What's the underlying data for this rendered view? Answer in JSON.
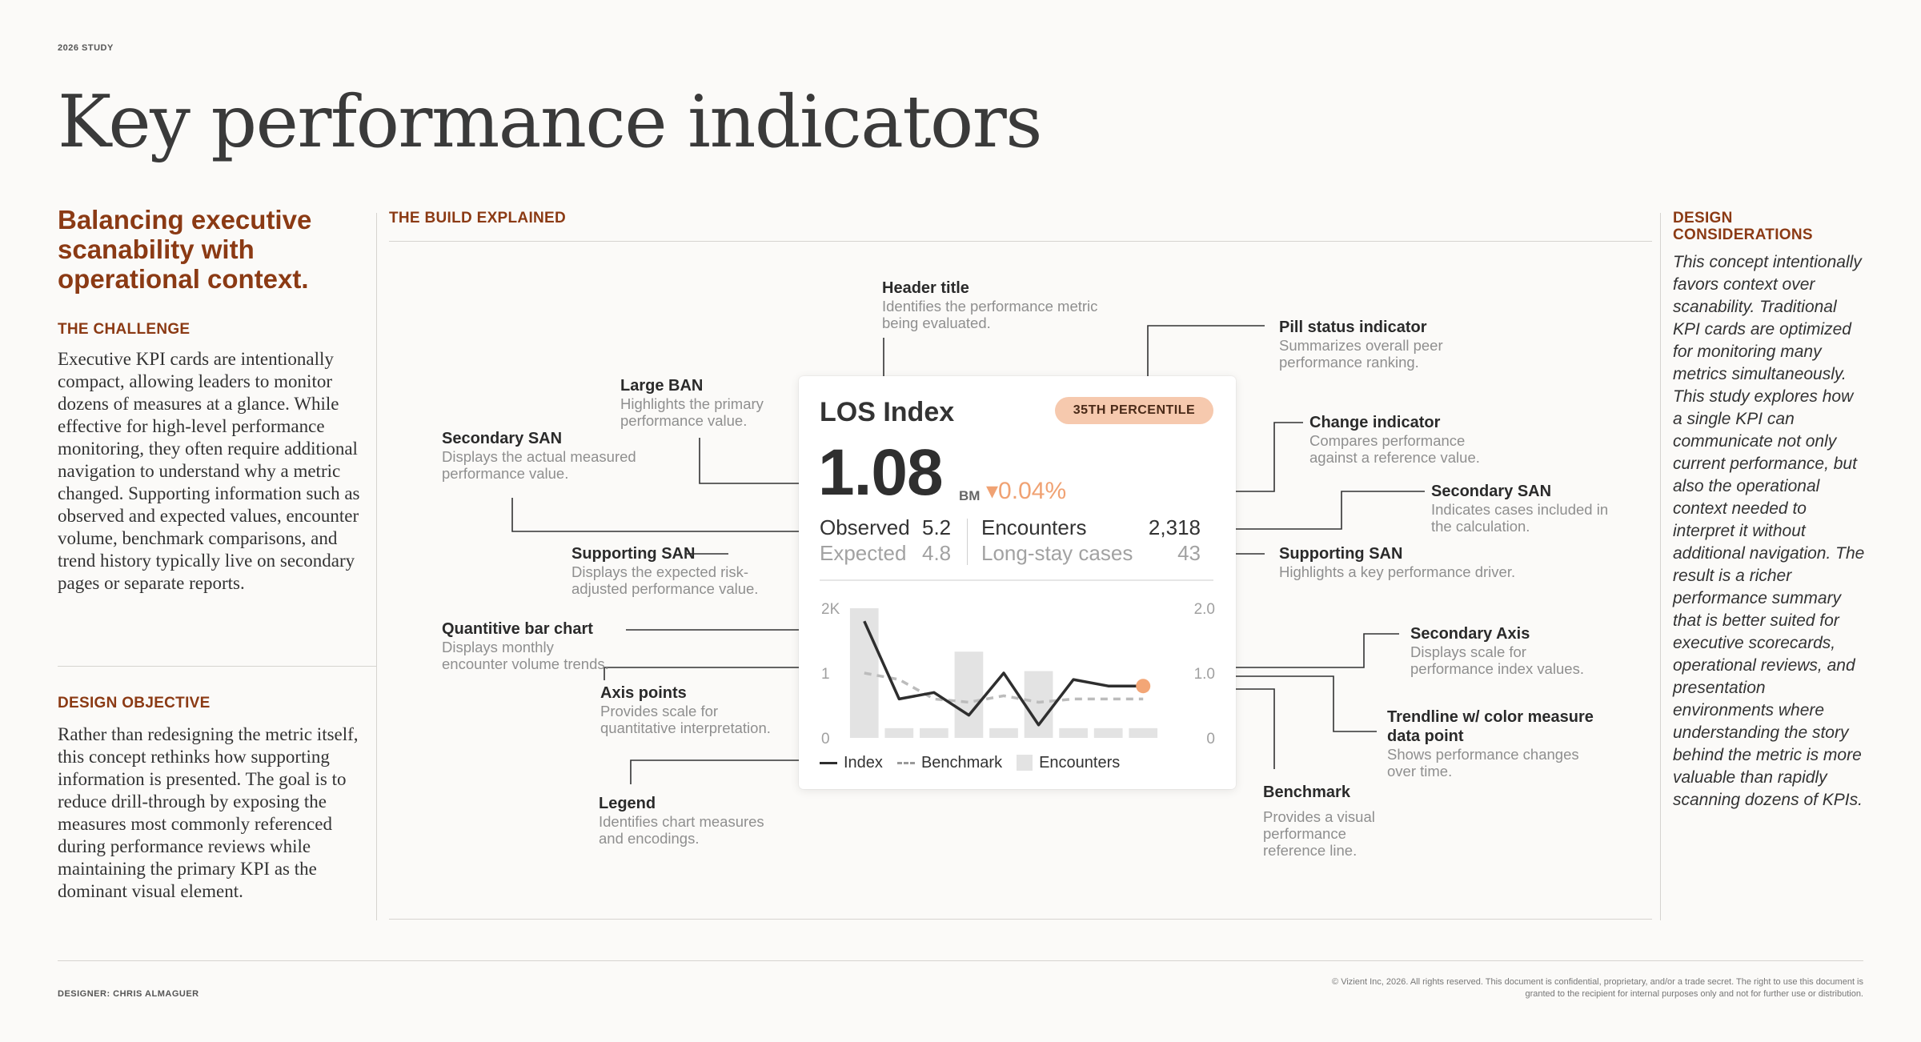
{
  "study_label": "2026 STUDY",
  "page_title": "Key performance indicators",
  "left": {
    "headline": "Balancing executive scanability with operational context.",
    "challenge_heading": "THE CHALLENGE",
    "challenge_body": "Executive KPI cards are intentionally compact, allowing leaders to monitor dozens of measures at a glance. While effective for high-level performance monitoring, they often require additional navigation to understand why a metric changed. Supporting information such as observed and expected values, encounter volume, benchmark comparisons, and trend history typically live on secondary pages or separate reports.",
    "objective_heading": "DESIGN OBJECTIVE",
    "objective_body": "Rather than redesigning the metric itself, this concept rethinks how supporting information is presented. The goal is to reduce drill-through by exposing the measures most commonly referenced during performance reviews while maintaining the primary KPI as the dominant visual element."
  },
  "build": {
    "heading": "THE BUILD EXPLAINED",
    "annotations": {
      "header_title": {
        "title": "Header title",
        "desc": "Identifies the performance metric being evaluated."
      },
      "pill_status": {
        "title": "Pill status indicator",
        "desc": "Summarizes overall peer performance ranking."
      },
      "large_ban": {
        "title": "Large BAN",
        "desc": "Highlights the primary performance value."
      },
      "secondary_san_left": {
        "title": "Secondary SAN",
        "desc": "Displays the actual measured performance value."
      },
      "change_indicator": {
        "title": "Change indicator",
        "desc": "Compares performance against a reference value."
      },
      "secondary_san_right": {
        "title": "Secondary SAN",
        "desc": "Indicates cases included in the calculation."
      },
      "supporting_san_left": {
        "title": "Supporting SAN",
        "desc": "Displays the expected risk-adjusted performance value."
      },
      "supporting_san_right": {
        "title": "Supporting SAN",
        "desc": "Highlights a key performance driver."
      },
      "bar_chart": {
        "title": "Quantitive bar chart",
        "desc": "Displays monthly encounter volume trends."
      },
      "axis_points": {
        "title": "Axis points",
        "desc": "Provides scale for quantitative interpretation."
      },
      "secondary_axis": {
        "title": "Secondary Axis",
        "desc": "Displays scale for performance index values."
      },
      "trendline": {
        "title": "Trendline w/ color measure data point",
        "desc": "Shows performance changes over time."
      },
      "legend": {
        "title": "Legend",
        "desc": "Identifies chart measures and encodings."
      },
      "benchmark": {
        "title": "Benchmark",
        "desc": "Provides a visual performance reference line."
      }
    }
  },
  "card": {
    "title": "LOS Index",
    "pill": "35TH PERCENTILE",
    "ban": "1.08",
    "bm_label": "BM",
    "change": "▾0.04%",
    "observed_label": "Observed",
    "observed_value": "5.2",
    "expected_label": "Expected",
    "expected_value": "4.8",
    "encounters_label": "Encounters",
    "encounters_value": "2,318",
    "longstay_label": "Long-stay cases",
    "longstay_value": "43",
    "legend": {
      "index": "Index",
      "benchmark": "Benchmark",
      "encounters": "Encounters"
    }
  },
  "chart_data": {
    "type": "bar",
    "title": "",
    "xlabel": "",
    "ylabel": "",
    "categories": [
      "1",
      "2",
      "3",
      "4",
      "5",
      "6",
      "7",
      "8",
      "9"
    ],
    "y_left_ticks": [
      "2K",
      "1",
      "0"
    ],
    "y_right_ticks": [
      "2.0",
      "1.0",
      "0"
    ],
    "ylim_left": [
      0,
      2000
    ],
    "ylim_right": [
      0,
      2.0
    ],
    "grid": false,
    "legend_position": "bottom",
    "series": [
      {
        "name": "Encounters",
        "kind": "bar",
        "axis": "left",
        "values": [
          2000,
          150,
          150,
          1330,
          150,
          1030,
          150,
          150,
          150
        ]
      },
      {
        "name": "Index",
        "kind": "line",
        "axis": "right",
        "values": [
          1.8,
          0.6,
          0.7,
          0.35,
          1.0,
          0.2,
          0.9,
          0.8,
          0.8
        ]
      },
      {
        "name": "Benchmark",
        "kind": "dashed-line",
        "axis": "right",
        "values": [
          1.0,
          0.9,
          0.6,
          0.55,
          0.65,
          0.55,
          0.6,
          0.6,
          0.6
        ]
      }
    ],
    "highlight_point": {
      "series": "Index",
      "index": 8
    },
    "colors": {
      "bars": "#e3e3e3",
      "index": "#2e2e2e",
      "benchmark": "#bcbcbc",
      "highlight": "#f3a676"
    }
  },
  "footer": {
    "designer": "DESIGNER: CHRIS ALMAGUER",
    "copyright": "© Vizient Inc, 2026. All rights reserved. This document is confidential, proprietary, and/or a trade secret. The right to use this document is granted to the recipient for internal purposes only and not for further use or distribution."
  },
  "right": {
    "heading": "DESIGN CONSIDERATIONS",
    "body": "This concept intentionally favors context over scanability. Traditional KPI cards are optimized for monitoring many metrics simultaneously. This study explores how a single KPI can communicate not only current performance, but also the operational context needed to interpret it without additional navigation. The result is a richer performance summary that is better suited for executive scorecards, operational reviews, and presentation environments where understanding the story behind the metric is more valuable than rapidly scanning dozens of KPIs."
  }
}
